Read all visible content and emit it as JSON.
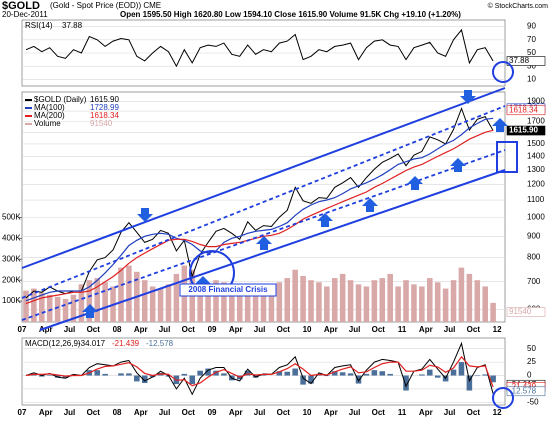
{
  "chart_data": [
    {
      "type": "line",
      "title": "RSI(14)",
      "series": [
        {
          "name": "RSI(14)",
          "color": "#000000",
          "values": [
            55,
            60,
            52,
            58,
            45,
            42,
            55,
            50,
            75,
            70,
            60,
            68,
            72,
            70,
            45,
            38,
            50,
            60,
            52,
            30,
            55,
            35,
            58,
            62,
            60,
            65,
            48,
            45,
            62,
            48,
            55,
            52,
            65,
            68,
            78,
            40,
            45,
            55,
            52,
            60,
            62,
            65,
            40,
            58,
            68,
            70,
            62,
            60,
            40,
            58,
            62,
            66,
            50,
            45,
            70,
            85,
            35,
            55,
            58,
            37.88,
            null
          ]
        }
      ],
      "ylim": [
        0,
        100
      ],
      "yticks": [
        10,
        30,
        50,
        70,
        90
      ],
      "grid": true
    },
    {
      "type": "line",
      "title": "$GOLD",
      "subtitle": "(Gold - Spot Price (EOD)) CME",
      "date": "20-Dec-2011",
      "quote": "Open 1595.50 High 1620.80 Low 1594.10 Close 1615.90 Volume 91.5K Chg +19.10 (+1.20%)",
      "credit": "© StockCharts.com",
      "categories": [
        "07",
        null,
        null,
        "Apr",
        null,
        null,
        "Jul",
        null,
        null,
        "Oct",
        null,
        null,
        "08",
        null,
        null,
        "Apr",
        null,
        null,
        "Jul",
        null,
        null,
        "Oct",
        null,
        null,
        "09",
        null,
        null,
        "Apr",
        null,
        null,
        "Jul",
        null,
        null,
        "Oct",
        null,
        null,
        "10",
        null,
        null,
        "Apr",
        null,
        null,
        "Jul",
        null,
        null,
        "Oct",
        null,
        null,
        "11",
        null,
        null,
        "Apr",
        null,
        null,
        "Jul",
        null,
        null,
        "Oct",
        null,
        null,
        "12"
      ],
      "series": [
        {
          "name": "$GOLD (Daily)",
          "color": "#000000",
          "values": [
            640,
            665,
            660,
            680,
            665,
            655,
            665,
            665,
            740,
            790,
            800,
            835,
            920,
            970,
            920,
            870,
            885,
            930,
            915,
            830,
            880,
            720,
            815,
            870,
            925,
            940,
            915,
            885,
            975,
            930,
            955,
            950,
            1000,
            1040,
            1180,
            1095,
            1080,
            1115,
            1110,
            1180,
            1210,
            1245,
            1180,
            1245,
            1305,
            1355,
            1385,
            1420,
            1330,
            1410,
            1440,
            1560,
            1535,
            1500,
            1625,
            1825,
            1620,
            1720,
            1745,
            1615.9,
            null
          ],
          "value_labels": {
            "59": "1615.90"
          }
        },
        {
          "name": "MA(100)",
          "color": "#1f3fbf",
          "values": [
            630,
            640,
            650,
            660,
            665,
            665,
            665,
            665,
            680,
            705,
            735,
            770,
            810,
            855,
            880,
            900,
            910,
            915,
            910,
            890,
            880,
            860,
            830,
            820,
            830,
            870,
            890,
            900,
            915,
            925,
            930,
            935,
            950,
            970,
            1010,
            1045,
            1070,
            1090,
            1100,
            1115,
            1140,
            1170,
            1190,
            1210,
            1235,
            1265,
            1300,
            1340,
            1360,
            1380,
            1390,
            1420,
            1460,
            1500,
            1530,
            1580,
            1640,
            1680,
            1720,
            1728.99,
            null
          ]
        },
        {
          "name": "MA(200)",
          "color": "#e02020",
          "values": [
            620,
            630,
            640,
            645,
            650,
            655,
            660,
            660,
            665,
            680,
            700,
            720,
            745,
            775,
            800,
            820,
            840,
            860,
            880,
            885,
            885,
            875,
            860,
            850,
            850,
            860,
            865,
            870,
            880,
            890,
            900,
            905,
            915,
            935,
            960,
            990,
            1010,
            1030,
            1050,
            1070,
            1090,
            1110,
            1130,
            1150,
            1180,
            1205,
            1235,
            1265,
            1295,
            1320,
            1340,
            1370,
            1400,
            1430,
            1460,
            1500,
            1540,
            1570,
            1600,
            1618.34,
            null
          ]
        },
        {
          "name": "Volume",
          "color": "#d9a9a9",
          "axis": "y2",
          "values": [
            150000,
            160000,
            140000,
            130000,
            120000,
            110000,
            130000,
            180000,
            200000,
            210000,
            190000,
            170000,
            260000,
            270000,
            240000,
            200000,
            170000,
            160000,
            180000,
            230000,
            270000,
            250000,
            190000,
            160000,
            200000,
            190000,
            180000,
            150000,
            170000,
            160000,
            140000,
            150000,
            190000,
            210000,
            250000,
            220000,
            200000,
            190000,
            170000,
            210000,
            230000,
            200000,
            180000,
            170000,
            200000,
            210000,
            230000,
            170000,
            200000,
            180000,
            170000,
            210000,
            190000,
            160000,
            200000,
            260000,
            230000,
            200000,
            170000,
            91540,
            null
          ]
        }
      ],
      "annotations": [
        "2008 Financial Crisis"
      ],
      "log_scale": true,
      "ylim": [
        560,
        2000
      ],
      "yticks": [
        600,
        700,
        800,
        900,
        1000,
        1100,
        1200,
        1300,
        1400,
        1500,
        1600,
        1700,
        1800,
        1900
      ],
      "y2lim": [
        0,
        1100000
      ],
      "y2ticks": [
        {
          "value": 100000,
          "label": "100K"
        },
        {
          "value": 200000,
          "label": "200K"
        },
        {
          "value": 300000,
          "label": "300K"
        },
        {
          "value": 400000,
          "label": "400K"
        },
        {
          "value": 500000,
          "label": "500K"
        }
      ],
      "grid": true
    },
    {
      "type": "line",
      "title": "MACD(12,26,9)",
      "categories": [
        "07",
        null,
        null,
        "Apr",
        null,
        null,
        "Jul",
        null,
        null,
        "Oct",
        null,
        null,
        "08",
        null,
        null,
        "Apr",
        null,
        null,
        "Jul",
        null,
        null,
        "Oct",
        null,
        null,
        "09",
        null,
        null,
        "Apr",
        null,
        null,
        "Jul",
        null,
        null,
        "Oct",
        null,
        null,
        "10",
        null,
        null,
        "Apr",
        null,
        null,
        "Jul",
        null,
        null,
        "Oct",
        null,
        null,
        "11",
        null,
        null,
        "Apr",
        null,
        null,
        "Jul",
        null,
        null,
        "Oct",
        null,
        null,
        "12"
      ],
      "series": [
        {
          "name": "MACD",
          "color": "#000000",
          "values": [
            0,
            5,
            0,
            4,
            -3,
            -5,
            2,
            0,
            15,
            22,
            20,
            18,
            25,
            28,
            5,
            -10,
            -3,
            8,
            0,
            -25,
            -5,
            -35,
            -5,
            10,
            15,
            15,
            -5,
            -10,
            12,
            -3,
            3,
            2,
            15,
            20,
            35,
            -5,
            -15,
            5,
            0,
            15,
            18,
            20,
            -10,
            10,
            25,
            30,
            28,
            25,
            -20,
            8,
            12,
            30,
            12,
            -5,
            25,
            60,
            -10,
            15,
            20,
            -34.017,
            null
          ]
        },
        {
          "name": "Signal",
          "color": "#e02020",
          "values": [
            0,
            2,
            2,
            3,
            1,
            -1,
            0,
            0,
            5,
            12,
            17,
            18,
            21,
            24,
            16,
            4,
            0,
            3,
            2,
            -9,
            -8,
            -19,
            -14,
            -3,
            6,
            11,
            4,
            -3,
            3,
            1,
            2,
            2,
            7,
            13,
            22,
            12,
            0,
            2,
            1,
            7,
            12,
            16,
            5,
            7,
            15,
            22,
            25,
            25,
            8,
            8,
            10,
            19,
            16,
            6,
            14,
            35,
            18,
            16,
            18,
            -21.439,
            null
          ]
        },
        {
          "name": "Histogram",
          "color": "#4a6f9a",
          "type": "bar",
          "values": [
            0,
            3,
            -2,
            1,
            -4,
            -4,
            2,
            0,
            10,
            10,
            3,
            0,
            4,
            4,
            -11,
            -14,
            -3,
            5,
            -2,
            -16,
            3,
            -16,
            9,
            13,
            9,
            4,
            -9,
            -7,
            9,
            -4,
            1,
            0,
            8,
            7,
            13,
            -17,
            -15,
            3,
            -1,
            8,
            6,
            4,
            -15,
            3,
            10,
            8,
            3,
            0,
            -28,
            0,
            2,
            11,
            -4,
            -11,
            11,
            25,
            -28,
            -1,
            2,
            -12.578,
            null
          ]
        }
      ],
      "ylim": [
        -55,
        70
      ],
      "yticks": [
        -50,
        -25,
        0,
        25,
        50
      ],
      "grid": true
    }
  ]
}
